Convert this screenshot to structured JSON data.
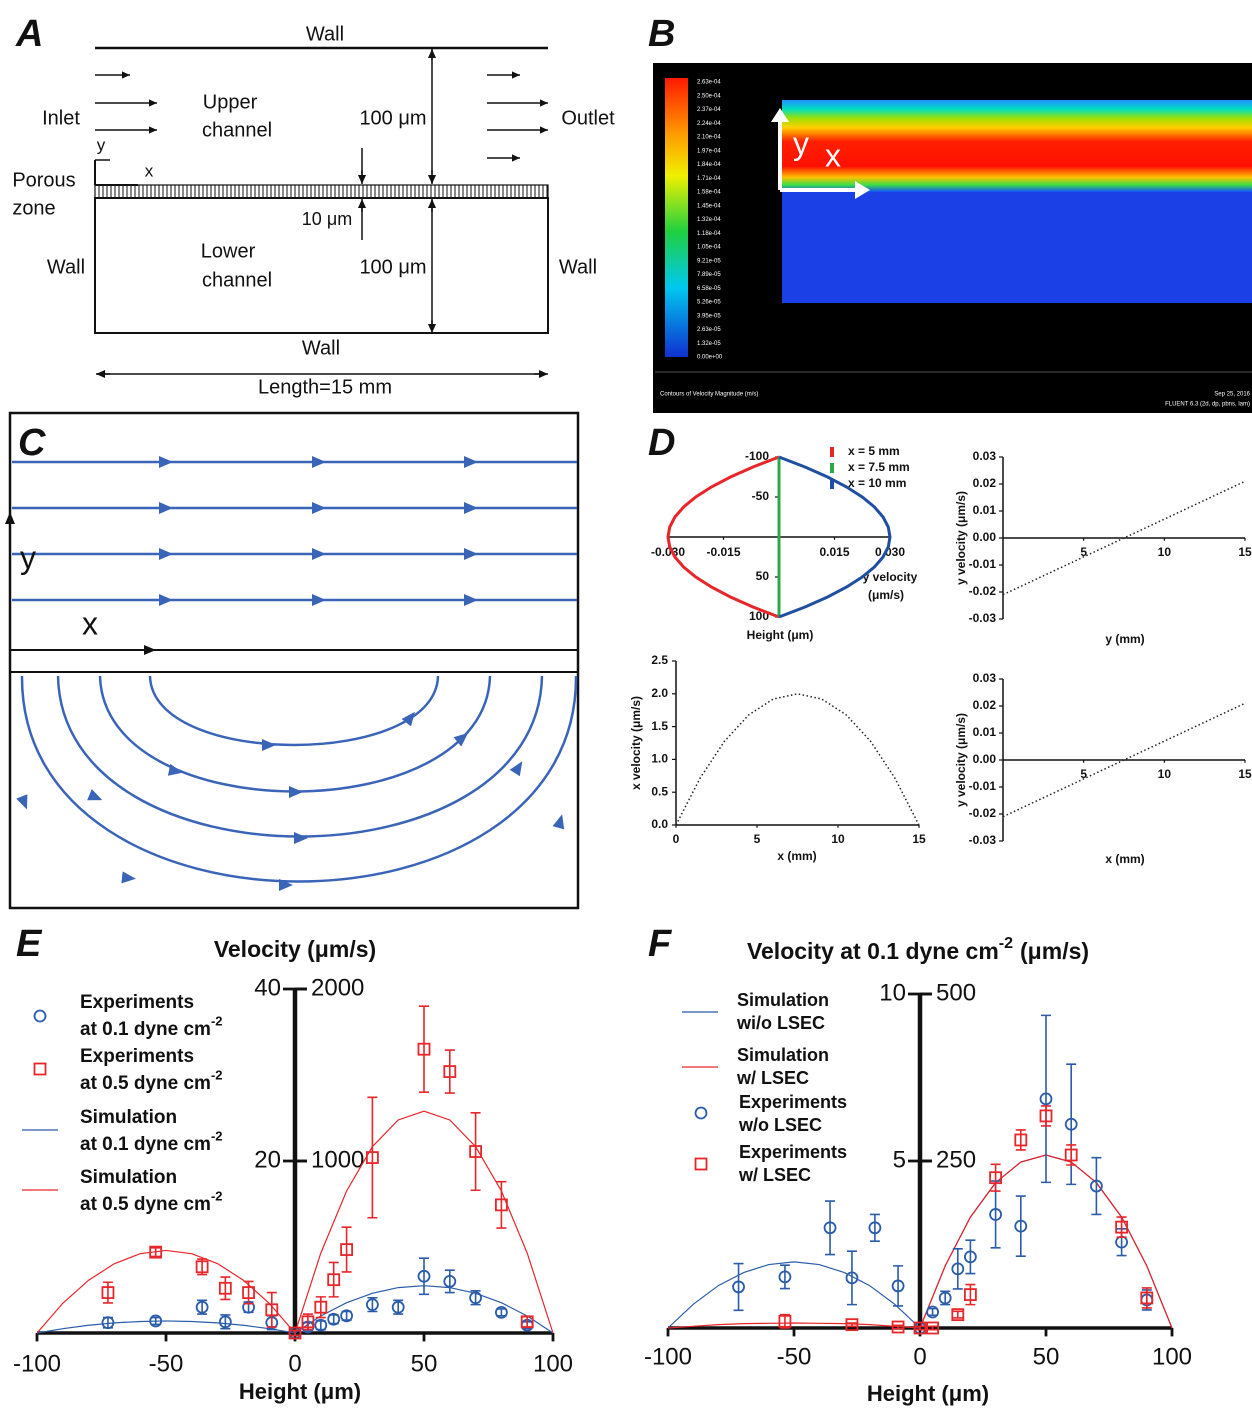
{
  "panel_labels": [
    "A",
    "B",
    "C",
    "D",
    "E",
    "F"
  ],
  "diagram_a": {
    "top_wall": "Wall",
    "inlet": "Inlet",
    "upper_channel": [
      "Upper",
      "channel"
    ],
    "upper_height": "100 μm",
    "outlet": "Outlet",
    "axis_y": "y",
    "axis_x": "x",
    "porous_zone": [
      "Porous",
      "zone"
    ],
    "porous_height": "10 μm",
    "left_wall": "Wall",
    "lower_channel": [
      "Lower",
      "channel"
    ],
    "lower_height": "100 μm",
    "right_wall": "Wall",
    "bottom_wall": "Wall",
    "length": "Length=15 mm"
  },
  "panel_b": {
    "colorbar_labels": [
      "2.63e-04",
      "2.50e-04",
      "2.37e-04",
      "2.24e-04",
      "2.10e-04",
      "1.97e-04",
      "1.84e-04",
      "1.71e-04",
      "1.58e-04",
      "1.45e-04",
      "1.32e-04",
      "1.18e-04",
      "1.05e-04",
      "9.21e-05",
      "7.89e-05",
      "6.58e-05",
      "5.26e-05",
      "3.95e-05",
      "2.63e-05",
      "1.32e-05",
      "0.00e+00"
    ],
    "axis_y": "y",
    "axis_x": "x",
    "caption": "Contours of Velocity Magnitude (m/s)",
    "date": "Sep 25, 2016",
    "solver": "FLUENT 6.3 (2d, dp, pbns, lam)"
  },
  "panel_c": {
    "axis_y": "y",
    "axis_x": "x"
  },
  "chart_data": [
    {
      "type": "line",
      "orientation": "horizontal",
      "y_reversed": true,
      "xlabel": [
        "y velocity",
        "(μm/s)"
      ],
      "ylabel": "Height (μm)",
      "y": [
        -100,
        -87.5,
        -75,
        -62.5,
        -50,
        -37.5,
        -25,
        -12.5,
        0,
        12.5,
        25,
        37.5,
        50,
        62.5,
        75,
        87.5,
        100
      ],
      "series": [
        {
          "name": "x = 5 mm",
          "color": "#e8262a",
          "values": [
            0,
            -0.00703,
            -0.01313,
            -0.01828,
            -0.0225,
            -0.02578,
            -0.02813,
            -0.02953,
            -0.03,
            -0.02953,
            -0.02813,
            -0.02578,
            -0.0225,
            -0.01828,
            -0.01313,
            -0.00703,
            0
          ]
        },
        {
          "name": "x = 7.5 mm",
          "color": "#2ca84a",
          "values": [
            0,
            0,
            0,
            0,
            0,
            0,
            0,
            0,
            0,
            0,
            0,
            0,
            0,
            0,
            0,
            0,
            0
          ]
        },
        {
          "name": "x = 10 mm",
          "color": "#1f4fa0",
          "values": [
            0,
            0.00703,
            0.01313,
            0.01828,
            0.0225,
            0.02578,
            0.02813,
            0.02953,
            0.03,
            0.02953,
            0.02813,
            0.02578,
            0.0225,
            0.01828,
            0.01313,
            0.00703,
            0
          ]
        }
      ],
      "xlim": [
        -0.03,
        0.03
      ],
      "xticks": [
        {
          "value": -0.03,
          "label": "-0.030"
        },
        {
          "value": -0.015,
          "label": "-0.015"
        },
        {
          "value": 0.015,
          "label": "0.015"
        },
        {
          "value": 0.03,
          "label": "0.030"
        }
      ],
      "ylim": [
        -100,
        100
      ],
      "yticks": [
        -100,
        -50,
        50,
        100
      ]
    },
    {
      "type": "line",
      "line_style": "dotted",
      "xlabel": "y (mm)",
      "ylabel": "y velocity (μm/s)",
      "x": [
        0,
        15
      ],
      "series": [
        {
          "color": "#222222",
          "values": [
            -0.021,
            0.021
          ]
        }
      ],
      "xlim": [
        0,
        15
      ],
      "xticks": [
        5,
        10,
        15
      ],
      "ylim": [
        -0.03,
        0.03
      ],
      "yticks": [
        0.03,
        0.02,
        0.01,
        {
          "value": 0,
          "label": "0.00"
        },
        -0.01,
        -0.02,
        -0.03
      ]
    },
    {
      "type": "line",
      "line_style": "dotted",
      "xlabel": "x (mm)",
      "ylabel": "x velocity (μm/s)",
      "x": [
        0,
        1.5,
        3,
        4.5,
        6,
        7.5,
        9,
        10.5,
        12,
        13.5,
        15
      ],
      "series": [
        {
          "color": "#222222",
          "values": [
            0,
            0.72,
            1.28,
            1.68,
            1.92,
            2.0,
            1.92,
            1.68,
            1.28,
            0.72,
            0
          ]
        }
      ],
      "xlim": [
        0,
        15
      ],
      "xticks": [
        0,
        5,
        10,
        15
      ],
      "ylim": [
        0,
        2.5
      ],
      "yticks": [
        {
          "value": 0,
          "label": "0.0"
        },
        0.5,
        {
          "value": 1,
          "label": "1.0"
        },
        1.5,
        {
          "value": 2,
          "label": "2.0"
        },
        2.5
      ]
    },
    {
      "type": "line",
      "line_style": "dotted",
      "xlabel": "x (mm)",
      "ylabel": "y velocity (μm/s)",
      "x": [
        0,
        15
      ],
      "series": [
        {
          "color": "#222222",
          "values": [
            -0.021,
            0.021
          ]
        }
      ],
      "xlim": [
        0,
        15
      ],
      "xticks": [
        5,
        10,
        15
      ],
      "ylim": [
        -0.03,
        0.03
      ],
      "yticks": [
        0.03,
        0.02,
        0.01,
        {
          "value": 0,
          "label": "0.00"
        },
        -0.01,
        -0.02,
        -0.03
      ]
    },
    {
      "type": "line",
      "title": "Velocity (μm/s)",
      "xlabel": "Height (μm)",
      "series": [
        {
          "name": [
            "Experiments",
            "at 0.1 dyne cm"
          ],
          "name_sup": "-2",
          "color": "#2a5caa",
          "marker": "circle",
          "x": [
            -72.5,
            -54,
            -36,
            -27,
            -18,
            -9,
            0,
            5,
            10,
            15,
            20,
            30,
            40,
            50,
            60,
            70,
            80,
            90
          ],
          "values": [
            1.2,
            1.4,
            3.0,
            1.3,
            3.0,
            1.2,
            0,
            0.7,
            0.9,
            1.6,
            2.0,
            3.3,
            3.0,
            6.6,
            6.0,
            4.1,
            2.4,
            0.9
          ],
          "errors": [
            0.6,
            0.4,
            0.8,
            0.8,
            0.6,
            0.8,
            0.3,
            0.5,
            0.5,
            0.5,
            0.5,
            0.8,
            0.8,
            2.1,
            1.3,
            0.8,
            0.4,
            0.4
          ]
        },
        {
          "name": [
            "Experiments",
            "at 0.5 dyne cm"
          ],
          "name_sup": "-2",
          "color": "#e8262a",
          "marker": "square",
          "x": [
            -72.5,
            -54,
            -36,
            -27,
            -18,
            -9,
            0,
            5,
            10,
            15,
            20,
            30,
            50,
            60,
            70,
            80,
            90
          ],
          "values": [
            4.7,
            9.4,
            7.7,
            5.2,
            4.7,
            2.7,
            0,
            1.3,
            3.0,
            6.2,
            9.7,
            20.4,
            33.0,
            30.4,
            21.1,
            14.9,
            1.3
          ],
          "errors": [
            1.2,
            0.5,
            0.9,
            1.3,
            1.3,
            2.0,
            0.3,
            0.9,
            1.2,
            2.0,
            2.6,
            7.0,
            5.0,
            2.5,
            4.5,
            2.7,
            0.6
          ]
        },
        {
          "name": [
            "Simulation",
            "at 0.1 dyne cm"
          ],
          "name_sup": "-2",
          "color": "#2a5caa",
          "marker": "line",
          "x": [
            -100,
            -90,
            -80,
            -70,
            -60,
            -50,
            -40,
            -30,
            -20,
            -10,
            0,
            10,
            20,
            30,
            40,
            50,
            60,
            70,
            80,
            90,
            100
          ],
          "values": [
            0,
            0.5,
            0.9,
            1.18,
            1.34,
            1.4,
            1.34,
            1.18,
            0.9,
            0.5,
            0,
            1.98,
            3.52,
            4.62,
            5.28,
            5.5,
            5.28,
            4.62,
            3.52,
            1.98,
            0
          ]
        },
        {
          "name": [
            "Simulation",
            "at 0.5 dyne cm"
          ],
          "name_sup": "-2",
          "color": "#e8262a",
          "marker": "line",
          "x": [
            -100,
            -90,
            -80,
            -70,
            -60,
            -50,
            -40,
            -30,
            -20,
            -10,
            0,
            10,
            20,
            30,
            40,
            50,
            60,
            70,
            80,
            90,
            100
          ],
          "values": [
            0,
            3.46,
            6.14,
            8.06,
            9.22,
            9.6,
            9.22,
            8.06,
            6.14,
            3.46,
            0,
            9.29,
            16.51,
            21.67,
            24.77,
            25.8,
            24.77,
            21.67,
            16.51,
            9.29,
            0
          ]
        }
      ],
      "xlim": [
        -100,
        100
      ],
      "xticks": [
        -100,
        -50,
        0,
        50,
        100
      ],
      "ylim": [
        0,
        40
      ],
      "yticks": [
        20,
        40
      ],
      "y2lim": [
        0,
        2000
      ],
      "y2ticks": [
        1000,
        2000
      ]
    },
    {
      "type": "line",
      "title": "Velocity at 0.1 dyne cm",
      "title_sup": "-2",
      "title_unit": "(μm/s)",
      "xlabel": "Height (μm)",
      "series": [
        {
          "name": [
            "Simulation",
            "wi/o LSEC"
          ],
          "color": "#2a5caa",
          "marker": "line",
          "x": [
            -100,
            -90,
            -80,
            -70,
            -60,
            -50,
            -40,
            -30,
            -20,
            -10,
            0,
            10,
            20,
            30,
            40,
            50,
            60,
            70,
            80,
            90,
            100
          ],
          "values": [
            0,
            0.71,
            1.27,
            1.66,
            1.9,
            1.98,
            1.9,
            1.66,
            1.27,
            0.71,
            0,
            1.86,
            3.32,
            4.35,
            4.97,
            5.18,
            4.97,
            4.35,
            3.32,
            1.86,
            0
          ]
        },
        {
          "name": [
            "Simulation",
            "w/ LSEC"
          ],
          "color": "#e8262a",
          "marker": "line",
          "x": [
            -100,
            -90,
            -80,
            -70,
            -60,
            -50,
            -40,
            -30,
            -20,
            -10,
            0,
            10,
            20,
            30,
            40,
            50,
            60,
            70,
            80,
            90,
            100
          ],
          "values": [
            0,
            0.05,
            0.1,
            0.13,
            0.14,
            0.15,
            0.14,
            0.13,
            0.1,
            0.05,
            0,
            1.86,
            3.32,
            4.35,
            4.97,
            5.18,
            4.97,
            4.35,
            3.32,
            1.86,
            0
          ]
        },
        {
          "name": [
            "Experiments",
            "w/o LSEC"
          ],
          "color": "#2a5caa",
          "marker": "circle",
          "x": [
            -72,
            -53.6,
            -35.7,
            -27,
            -17.9,
            -8.7,
            0,
            5,
            10,
            15,
            20,
            30,
            40,
            50,
            60,
            70,
            80,
            90
          ],
          "values": [
            1.23,
            1.53,
            3.0,
            1.5,
            3.0,
            1.26,
            0,
            0.48,
            0.9,
            1.77,
            2.13,
            3.4,
            3.05,
            6.86,
            6.1,
            4.25,
            2.57,
            0.84
          ],
          "errors": [
            0.7,
            0.35,
            0.8,
            0.8,
            0.4,
            0.6,
            0.05,
            0.1,
            0.2,
            0.6,
            0.5,
            1.0,
            0.9,
            2.5,
            1.8,
            0.85,
            0.4,
            0.3
          ]
        },
        {
          "name": [
            "Experiments",
            "w/ LSEC"
          ],
          "color": "#e8262a",
          "marker": "square",
          "x": [
            -53.6,
            -27,
            -8.7,
            0,
            5,
            15,
            20,
            30,
            40,
            50,
            60,
            80,
            90
          ],
          "values": [
            0.2,
            0.1,
            0.03,
            0,
            0,
            0.4,
            1.0,
            4.5,
            5.63,
            6.35,
            5.18,
            3.02,
            0.9
          ],
          "errors": [
            0.2,
            0.05,
            0.05,
            0.05,
            0.05,
            0.1,
            0.3,
            0.4,
            0.3,
            0.3,
            0.3,
            0.3,
            0.3
          ]
        }
      ],
      "xlim": [
        -100,
        100
      ],
      "xticks": [
        -100,
        -50,
        0,
        50,
        100
      ],
      "ylim": [
        0,
        10
      ],
      "yticks": [
        5,
        10
      ],
      "y2lim": [
        0,
        500
      ],
      "y2ticks": [
        250,
        500
      ]
    }
  ]
}
